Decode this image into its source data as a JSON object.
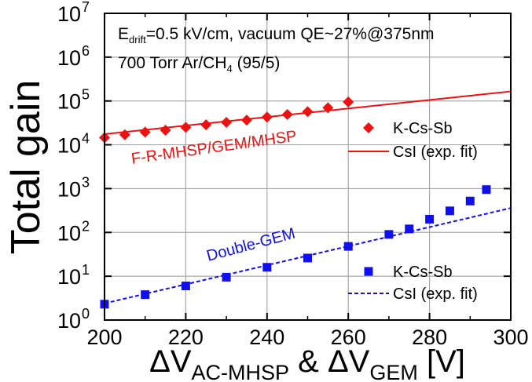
{
  "chart_data": {
    "type": "scatter",
    "title": "",
    "xlabel": {
      "parts": [
        {
          "t": "ΔV",
          "sub": false
        },
        {
          "t": "AC-MHSP",
          "sub": true
        },
        {
          "t": " & ΔV",
          "sub": false
        },
        {
          "t": "GEM",
          "sub": true
        },
        {
          "t": " [V]",
          "sub": false
        }
      ]
    },
    "ylabel": "Total gain",
    "xlim": [
      200,
      300
    ],
    "ylim": [
      1,
      10000000
    ],
    "yscale": "log",
    "grid": true,
    "x_ticks": [
      "200",
      "220",
      "240",
      "260",
      "280",
      "300"
    ],
    "y_ticks": [
      {
        "base": "10",
        "exp": "0"
      },
      {
        "base": "10",
        "exp": "1"
      },
      {
        "base": "10",
        "exp": "2"
      },
      {
        "base": "10",
        "exp": "3"
      },
      {
        "base": "10",
        "exp": "4"
      },
      {
        "base": "10",
        "exp": "5"
      },
      {
        "base": "10",
        "exp": "6"
      },
      {
        "base": "10",
        "exp": "7"
      }
    ],
    "annotations": {
      "line1": [
        {
          "t": "E",
          "sub": false
        },
        {
          "t": "drift",
          "sub": true
        },
        {
          "t": "=0.5 kV/cm, vacuum QE~27%@375nm",
          "sub": false
        }
      ],
      "line2": [
        {
          "t": "700 Torr Ar/CH",
          "sub": false
        },
        {
          "t": "4",
          "sub": true
        },
        {
          "t": " (95/5)",
          "sub": false
        }
      ],
      "red_label": "F-R-MHSP/GEM/MHSP",
      "blue_label": "Double-GEM"
    },
    "legend_placement": "right, inside plot",
    "series": [
      {
        "name": "K-Cs-Sb",
        "group": "F-R-MHSP/GEM/MHSP",
        "marker": "diamond",
        "color": "#ee1111",
        "x": [
          200,
          205,
          210,
          215,
          220,
          225,
          230,
          235,
          240,
          245,
          250,
          255,
          260
        ],
        "y": [
          14500,
          17000,
          19500,
          21500,
          25000,
          28500,
          32500,
          36500,
          43000,
          49000,
          57000,
          70000,
          95000
        ]
      },
      {
        "name": "CsI (exp. fit)",
        "group": "F-R-MHSP/GEM/MHSP",
        "style": "solid",
        "color": "#ee1111",
        "x": [
          200,
          300
        ],
        "y": [
          17500,
          165000
        ]
      },
      {
        "name": "K-Cs-Sb",
        "group": "Double-GEM",
        "marker": "square",
        "color": "#1010ee",
        "x": [
          200,
          210,
          220,
          230,
          240,
          250,
          260,
          270,
          275,
          280,
          285,
          290,
          294
        ],
        "y": [
          2.3,
          3.8,
          6,
          9.5,
          16,
          26,
          48,
          90,
          120,
          200,
          310,
          520,
          950
        ]
      },
      {
        "name": "CsI (exp. fit)",
        "group": "Double-GEM",
        "style": "dashed",
        "color": "#1010ee",
        "x": [
          200,
          300
        ],
        "y": [
          2.4,
          360
        ]
      }
    ]
  }
}
